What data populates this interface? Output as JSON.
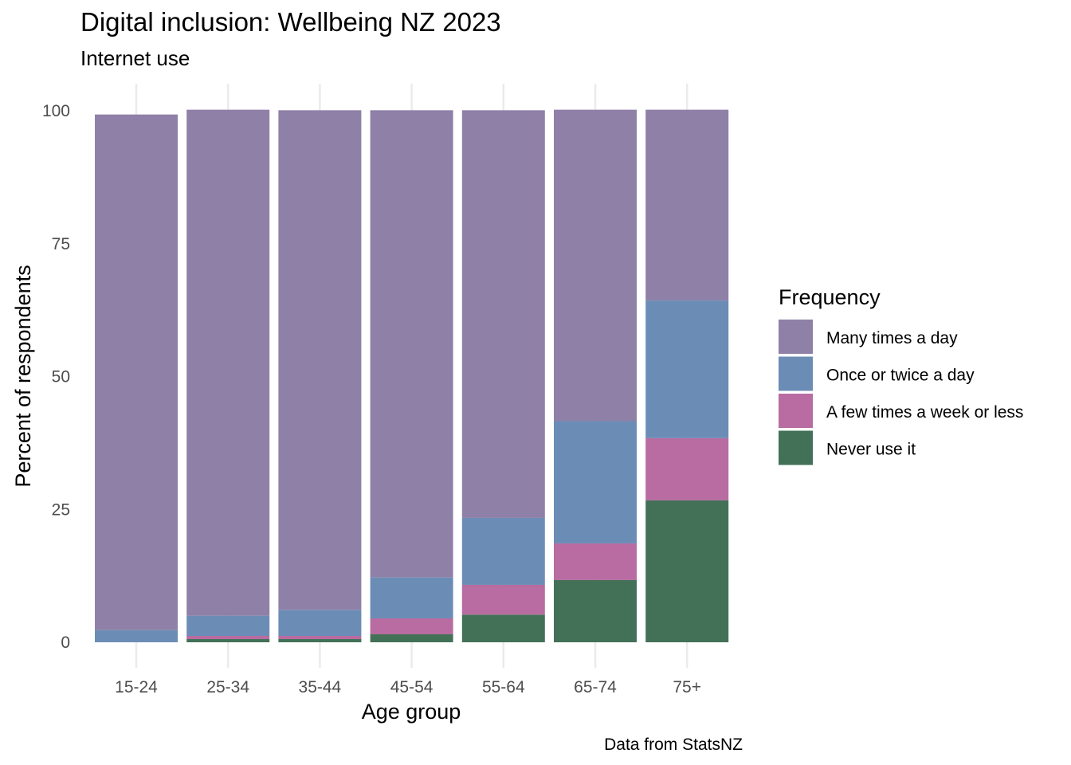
{
  "chart_data": {
    "type": "bar",
    "stacked": true,
    "title": "Digital inclusion: Wellbeing NZ 2023",
    "subtitle": "Internet use",
    "xlabel": "Age group",
    "ylabel": "Percent of respondents",
    "caption": "Data from StatsNZ",
    "ylim": [
      0,
      100
    ],
    "yticks": [
      "0",
      "25",
      "50",
      "75",
      "100"
    ],
    "grid": true,
    "legend_title": "Frequency",
    "legend_position": "right",
    "categories": [
      "15-24",
      "25-34",
      "35-44",
      "45-54",
      "55-64",
      "65-74",
      "75+"
    ],
    "series": [
      {
        "name": "Never use it",
        "color": "#437158",
        "values": [
          0,
          0.6,
          0.6,
          1.5,
          5.2,
          11.7,
          26.7
        ]
      },
      {
        "name": "A few times a week or less",
        "color": "#b86ca1",
        "values": [
          0,
          0.6,
          0.6,
          3.0,
          5.6,
          6.9,
          11.7
        ]
      },
      {
        "name": "Once or twice a day",
        "color": "#6b8db5",
        "values": [
          2.3,
          3.8,
          4.9,
          7.7,
          12.6,
          23.0,
          25.9
        ]
      },
      {
        "name": "Many times a day",
        "color": "#8f80a8",
        "values": [
          97.0,
          95.2,
          94.0,
          87.9,
          76.7,
          58.6,
          35.9
        ]
      }
    ],
    "legend_order": [
      "Many times a day",
      "Once or twice a day",
      "A few times a week or less",
      "Never use it"
    ]
  }
}
